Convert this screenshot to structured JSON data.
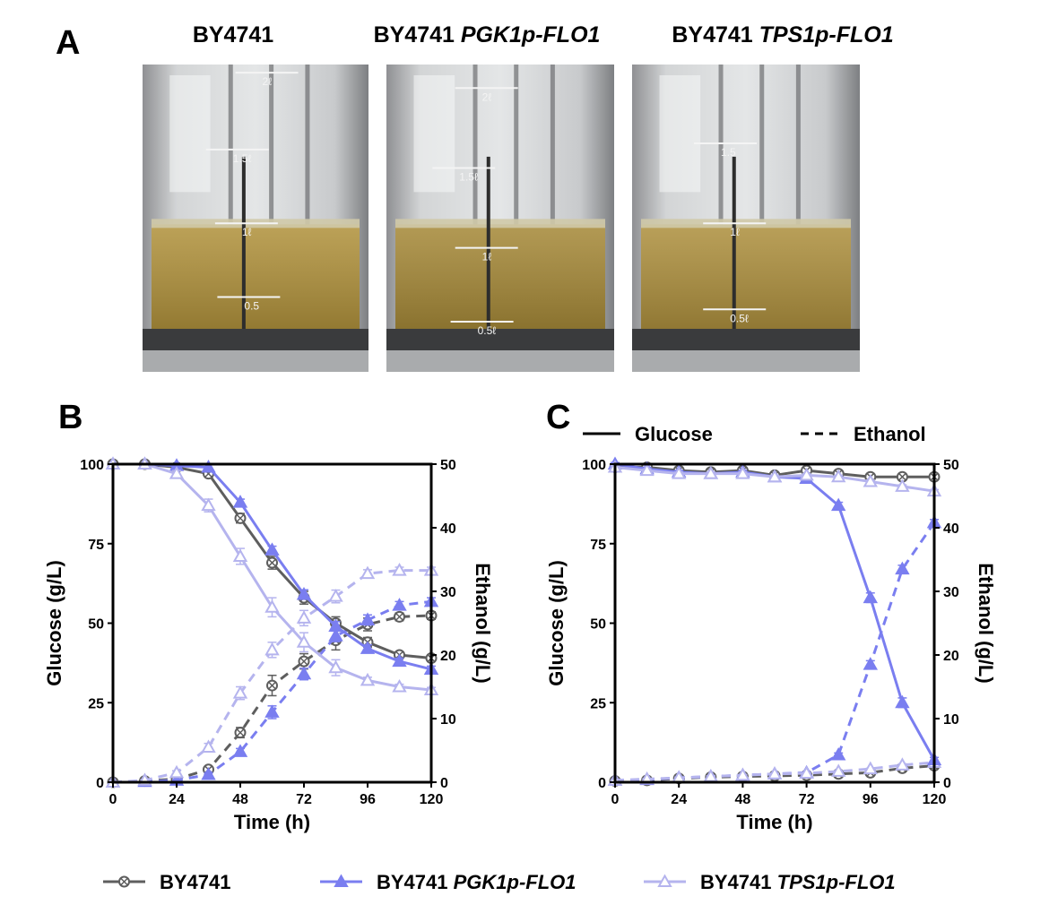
{
  "panels": {
    "a": "A",
    "b": "B",
    "c": "C"
  },
  "photos": [
    {
      "title": "BY4741",
      "title_italic": "",
      "labels": [
        "2ℓ",
        "1.5ℓ",
        "1ℓ",
        "0.5"
      ],
      "liquid_color": "#b0913a"
    },
    {
      "title": "BY4741 ",
      "title_italic": "PGK1p-FLO1",
      "labels": [
        "2ℓ",
        "1.5ℓ",
        "1ℓ",
        "0.5ℓ"
      ],
      "liquid_color": "#a58836"
    },
    {
      "title": "BY4741 ",
      "title_italic": "TPS1p-FLO1",
      "labels": [
        "1.5",
        "1ℓ",
        "0.5ℓ"
      ],
      "liquid_color": "#ad8f3c"
    }
  ],
  "line_style_legend": {
    "solid": "Glucose",
    "dashed": "Ethanol"
  },
  "legend": [
    {
      "name": "BY4741",
      "italic": "",
      "color": "#5e5e5e",
      "marker": "circle"
    },
    {
      "name": "BY4741 ",
      "italic": "PGK1p-FLO1",
      "color": "#7a7ef0",
      "marker": "triangle-filled"
    },
    {
      "name": "BY4741 ",
      "italic": "TPS1p-FLO1",
      "color": "#b5b4ee",
      "marker": "triangle-open"
    }
  ],
  "chart_data": [
    {
      "panel": "B",
      "type": "line",
      "xlabel": "Time (h)",
      "ylabel_left": "Glucose (g/L)",
      "ylabel_right": "Ethanol (g/L)",
      "xlim": [
        0,
        120
      ],
      "ylim_left": [
        0,
        100
      ],
      "ylim_right": [
        0,
        50
      ],
      "xticks": [
        0,
        24,
        48,
        72,
        96,
        120
      ],
      "xtick_labels": [
        "0",
        "24",
        "48",
        "72",
        "96",
        "120"
      ],
      "yticks_left": [
        0,
        25,
        50,
        75,
        100
      ],
      "ytick_labels_left": [
        "0",
        "25",
        "50",
        "75",
        "100"
      ],
      "yticks_right": [
        0,
        10,
        20,
        30,
        40,
        50
      ],
      "ytick_labels_right": [
        "0",
        "10",
        "20",
        "30",
        "40",
        "50"
      ],
      "x": [
        0,
        12,
        24,
        36,
        48,
        60,
        72,
        84,
        96,
        108,
        120
      ],
      "series": [
        {
          "strain": "BY4741",
          "variable": "Glucose",
          "axis": "left",
          "values": [
            100,
            100,
            99,
            97,
            83,
            69,
            58,
            50,
            44,
            40,
            39
          ],
          "errors": [
            0,
            0,
            0.6,
            1,
            1.5,
            2,
            2,
            2,
            1.5,
            1,
            1
          ]
        },
        {
          "strain": "BY4741 PGK1p-FLO1",
          "variable": "Glucose",
          "axis": "left",
          "values": [
            100,
            100,
            99.5,
            99,
            88,
            73,
            59,
            49,
            42,
            38,
            35.5
          ],
          "errors": [
            0,
            0,
            0.5,
            0.8,
            1,
            1.2,
            1.5,
            1.5,
            1.2,
            1,
            1
          ]
        },
        {
          "strain": "BY4741 TPS1p-FLO1",
          "variable": "Glucose",
          "axis": "left",
          "values": [
            100,
            100,
            97,
            87,
            71,
            55,
            44,
            36,
            32,
            30,
            29
          ],
          "errors": [
            0,
            0,
            1,
            2,
            2.5,
            3,
            3,
            2.5,
            1,
            0.8,
            0.8
          ]
        },
        {
          "strain": "BY4741",
          "variable": "Ethanol",
          "axis": "right",
          "values": [
            0,
            0.2,
            0.5,
            2,
            7.8,
            15.2,
            19,
            22.3,
            24.8,
            26,
            26.2
          ],
          "errors": [
            0,
            0.1,
            0.1,
            0.4,
            0.8,
            1.6,
            1.2,
            1.5,
            1,
            0.6,
            0.6
          ]
        },
        {
          "strain": "BY4741 PGK1p-FLO1",
          "variable": "Ethanol",
          "axis": "right",
          "values": [
            0,
            0.1,
            0.3,
            1.2,
            4.8,
            11,
            17,
            23,
            25.5,
            27.8,
            28.4
          ],
          "errors": [
            0,
            0.1,
            0.1,
            0.3,
            0.5,
            1,
            0.9,
            0.9,
            0.8,
            0.6,
            0.6
          ]
        },
        {
          "strain": "BY4741 TPS1p-FLO1",
          "variable": "Ethanol",
          "axis": "right",
          "values": [
            0,
            0.3,
            1.5,
            5.5,
            14,
            20.8,
            25.8,
            29.2,
            32.8,
            33.3,
            33.3
          ],
          "errors": [
            0,
            0.1,
            0.3,
            0.6,
            1,
            1.2,
            1.2,
            1,
            0.6,
            0.5,
            0.5
          ]
        }
      ]
    },
    {
      "panel": "C",
      "type": "line",
      "xlabel": "Time (h)",
      "ylabel_left": "Glucose (g/L)",
      "ylabel_right": "Ethanol (g/L)",
      "xlim": [
        0,
        120
      ],
      "ylim_left": [
        0,
        100
      ],
      "ylim_right": [
        0,
        50
      ],
      "xticks": [
        0,
        24,
        48,
        72,
        96,
        120
      ],
      "xtick_labels": [
        "0",
        "24",
        "48",
        "72",
        "96",
        "120"
      ],
      "yticks_left": [
        0,
        25,
        50,
        75,
        100
      ],
      "ytick_labels_left": [
        "0",
        "25",
        "50",
        "75",
        "100"
      ],
      "yticks_right": [
        0,
        10,
        20,
        30,
        40,
        50
      ],
      "ytick_labels_right": [
        "0",
        "10",
        "20",
        "30",
        "40",
        "50"
      ],
      "x": [
        0,
        12,
        24,
        36,
        48,
        60,
        72,
        84,
        96,
        108,
        120
      ],
      "series": [
        {
          "strain": "BY4741",
          "variable": "Glucose",
          "axis": "left",
          "values": [
            99,
            99,
            98,
            97.5,
            98,
            96.5,
            98,
            97,
            96,
            96,
            96
          ],
          "errors": [
            0.5,
            0.5,
            0.5,
            0.5,
            0.5,
            0.5,
            0.5,
            0.5,
            0.5,
            0.5,
            0.5
          ]
        },
        {
          "strain": "BY4741 PGK1p-FLO1",
          "variable": "Glucose",
          "axis": "left",
          "values": [
            100,
            98.5,
            97.5,
            97,
            97.5,
            96,
            95.5,
            87,
            58,
            25,
            7
          ],
          "errors": [
            0.5,
            0.5,
            0.5,
            0.5,
            0.5,
            0.5,
            0.5,
            1,
            1.5,
            1.5,
            0.8
          ]
        },
        {
          "strain": "BY4741 TPS1p-FLO1",
          "variable": "Glucose",
          "axis": "left",
          "values": [
            99,
            98,
            97,
            97,
            97,
            96,
            96.5,
            96,
            94.5,
            93,
            91.5
          ],
          "errors": [
            0.5,
            0.5,
            0.5,
            0.5,
            0.5,
            0.5,
            0.5,
            0.5,
            0.5,
            0.5,
            0.5
          ]
        },
        {
          "strain": "BY4741",
          "variable": "Ethanol",
          "axis": "right",
          "values": [
            0.2,
            0.3,
            0.6,
            0.8,
            0.9,
            1,
            1.1,
            1.3,
            1.5,
            2.2,
            2.6
          ],
          "errors": [
            0.1,
            0.1,
            0.1,
            0.1,
            0.1,
            0.1,
            0.1,
            0.1,
            0.1,
            0.2,
            0.2
          ]
        },
        {
          "strain": "BY4741 PGK1p-FLO1",
          "variable": "Ethanol",
          "axis": "right",
          "values": [
            0.3,
            0.4,
            0.7,
            0.9,
            1.1,
            1.3,
            1.5,
            4.3,
            18.5,
            33.5,
            40.8
          ],
          "errors": [
            0.1,
            0.1,
            0.1,
            0.1,
            0.1,
            0.1,
            0.1,
            0.3,
            0.6,
            0.6,
            0.5
          ]
        },
        {
          "strain": "BY4741 TPS1p-FLO1",
          "variable": "Ethanol",
          "axis": "right",
          "values": [
            0.3,
            0.5,
            0.7,
            0.9,
            1.1,
            1.3,
            1.4,
            1.7,
            2.1,
            2.7,
            3.1
          ],
          "errors": [
            0.1,
            0.1,
            0.1,
            0.1,
            0.1,
            0.1,
            0.1,
            0.1,
            0.1,
            0.2,
            0.2
          ]
        }
      ]
    }
  ]
}
